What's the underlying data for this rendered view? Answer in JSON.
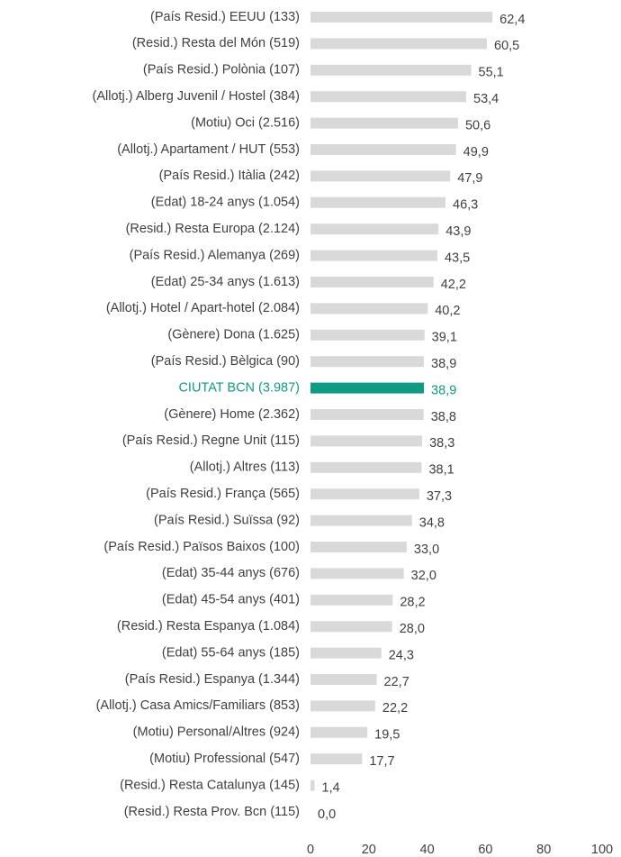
{
  "chart_data": {
    "type": "hbar",
    "categories": [
      "(País Resid.) EEUU (133)",
      "(Resid.) Resta del Món (519)",
      "(País Resid.) Polònia (107)",
      "(Allotj.) Alberg Juvenil / Hostel (384)",
      "(Motiu) Oci (2.516)",
      "(Allotj.) Apartament / HUT (553)",
      "(País Resid.) Itàlia (242)",
      "(Edat) 18-24 anys (1.054)",
      "(Resid.) Resta Europa (2.124)",
      "(País Resid.) Alemanya (269)",
      "(Edat) 25-34 anys  (1.613)",
      "(Allotj.) Hotel / Apart-hotel (2.084)",
      "(Gènere) Dona (1.625)",
      "(País Resid.) Bèlgica (90)",
      "CIUTAT BCN (3.987)",
      "(Gènere) Home (2.362)",
      "(País Resid.) Regne Unit (115)",
      "(Allotj.) Altres (113)",
      "(País Resid.) França (565)",
      "(País Resid.) Suïssa (92)",
      "(País Resid.) Països Baixos (100)",
      "(Edat) 35-44 anys (676)",
      "(Edat) 45-54 anys (401)",
      "(Resid.) Resta Espanya (1.084)",
      "(Edat) 55-64 anys (185)",
      "(País Resid.) Espanya (1.344)",
      "(Allotj.) Casa Amics/Familiars (853)",
      "(Motiu) Personal/Altres (924)",
      "(Motiu) Professional (547)",
      "(Resid.) Resta Catalunya (145)",
      "(Resid.) Resta Prov. Bcn (115)"
    ],
    "values": [
      62.4,
      60.5,
      55.1,
      53.4,
      50.6,
      49.9,
      47.9,
      46.3,
      43.9,
      43.5,
      42.2,
      40.2,
      39.1,
      38.9,
      38.9,
      38.8,
      38.3,
      38.1,
      37.3,
      34.8,
      33.0,
      32.0,
      28.2,
      28.0,
      24.3,
      22.7,
      22.2,
      19.5,
      17.7,
      1.4,
      0.0
    ],
    "value_labels": [
      "62,4",
      "60,5",
      "55,1",
      "53,4",
      "50,6",
      "49,9",
      "47,9",
      "46,3",
      "43,9",
      "43,5",
      "42,2",
      "40,2",
      "39,1",
      "38,9",
      "38,9",
      "38,8",
      "38,3",
      "38,1",
      "37,3",
      "34,8",
      "33,0",
      "32,0",
      "28,2",
      "28,0",
      "24,3",
      "22,7",
      "22,2",
      "19,5",
      "17,7",
      "1,4",
      "0,0"
    ],
    "color": "#d9d9d9",
    "highlight": {
      "index": 14,
      "color": "#0e9a83"
    },
    "xlim": [
      0,
      100
    ],
    "xticks": [
      0,
      20,
      40,
      60,
      80,
      100
    ],
    "grid": false
  }
}
